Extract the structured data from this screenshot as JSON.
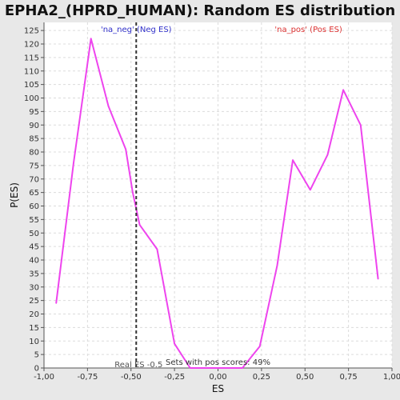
{
  "chart_data": {
    "type": "line",
    "title": "EPHA2_(HPRD_HUMAN): Random ES distribution",
    "xlabel": "ES",
    "ylabel": "P(ES)",
    "xlim": [
      -1.0,
      1.0
    ],
    "ylim": [
      0,
      128
    ],
    "x_ticks": [
      -1.0,
      -0.75,
      -0.5,
      -0.25,
      0.0,
      0.25,
      0.5,
      0.75,
      1.0
    ],
    "x_tick_labels": [
      "-1,00",
      "-0,75",
      "-0,50",
      "-0,25",
      "0,00",
      "0,25",
      "0,50",
      "0,75",
      "1,00"
    ],
    "y_ticks": [
      0,
      5,
      10,
      15,
      20,
      25,
      30,
      35,
      40,
      45,
      50,
      55,
      60,
      65,
      70,
      75,
      80,
      85,
      90,
      95,
      100,
      105,
      110,
      115,
      120,
      125
    ],
    "grid": true,
    "series": [
      {
        "color": "#ee44ee",
        "x": [
          -0.93,
          -0.83,
          -0.73,
          -0.63,
          -0.53,
          -0.49,
          -0.45,
          -0.35,
          -0.25,
          -0.16,
          -0.06,
          0.04,
          0.14,
          0.24,
          0.34,
          0.43,
          0.53,
          0.63,
          0.72,
          0.82,
          0.92
        ],
        "y": [
          24,
          76,
          122,
          97,
          81,
          65,
          53,
          44,
          9,
          0,
          0,
          0,
          0,
          8,
          38,
          77,
          66,
          79,
          103,
          90,
          33
        ]
      }
    ],
    "real_es": -0.47,
    "annotations": {
      "neg_label": "'na_neg' (Neg ES)",
      "pos_label": "'na_pos' (Pos ES)",
      "real_es_label": "Real ES -0.5",
      "pos_scores_label": "Sets with pos scores: 49%"
    },
    "colors": {
      "neg": "#3333cc",
      "pos": "#dd3333",
      "line": "#ee44ee"
    }
  }
}
